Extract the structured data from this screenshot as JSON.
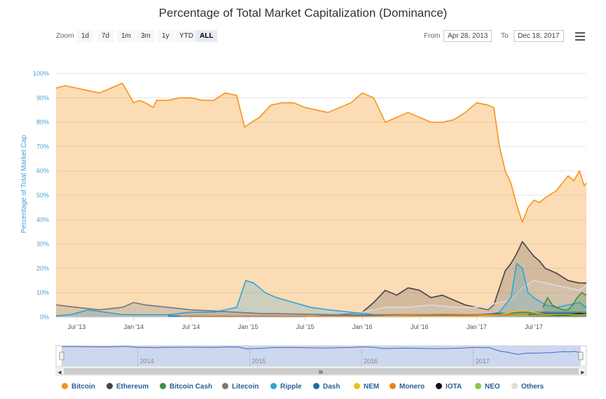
{
  "chart_data": {
    "type": "area",
    "title": "Percentage of Total Market Capitalization (Dominance)",
    "ylabel": "Percentage of Total Market Cap",
    "xlabel": "",
    "ylim": [
      0,
      100
    ],
    "y_ticks": [
      "0%",
      "10%",
      "20%",
      "30%",
      "40%",
      "50%",
      "60%",
      "70%",
      "80%",
      "90%",
      "100%"
    ],
    "x_range": [
      2013.32,
      2017.96
    ],
    "x_ticks": [
      {
        "label": "Jul '13",
        "x": 2013.5
      },
      {
        "label": "Jan '14",
        "x": 2014.0
      },
      {
        "label": "Jul '14",
        "x": 2014.5
      },
      {
        "label": "Jan '15",
        "x": 2015.0
      },
      {
        "label": "Jul '15",
        "x": 2015.5
      },
      {
        "label": "Jan '16",
        "x": 2016.0
      },
      {
        "label": "Jul '16",
        "x": 2016.5
      },
      {
        "label": "Jan '17",
        "x": 2017.0
      },
      {
        "label": "Jul '17",
        "x": 2017.5
      }
    ],
    "series": [
      {
        "name": "Bitcoin",
        "color": "#f7931a",
        "x": [
          2013.32,
          2013.4,
          2013.5,
          2013.6,
          2013.7,
          2013.8,
          2013.9,
          2014.0,
          2014.05,
          2014.1,
          2014.17,
          2014.2,
          2014.3,
          2014.4,
          2014.5,
          2014.6,
          2014.7,
          2014.8,
          2014.9,
          2014.97,
          2015.03,
          2015.1,
          2015.2,
          2015.3,
          2015.4,
          2015.5,
          2015.6,
          2015.7,
          2015.8,
          2015.9,
          2016.0,
          2016.1,
          2016.15,
          2016.2,
          2016.3,
          2016.4,
          2016.5,
          2016.6,
          2016.7,
          2016.8,
          2016.9,
          2017.0,
          2017.1,
          2017.15,
          2017.2,
          2017.25,
          2017.3,
          2017.35,
          2017.4,
          2017.45,
          2017.5,
          2017.55,
          2017.6,
          2017.7,
          2017.8,
          2017.85,
          2017.9,
          2017.94,
          2017.96
        ],
        "values": [
          94,
          95,
          94,
          93,
          92,
          94,
          96,
          88,
          89,
          88,
          86,
          89,
          89,
          90,
          90,
          89,
          89,
          92,
          91,
          78,
          80,
          82,
          87,
          88,
          88,
          86,
          85,
          84,
          86,
          88,
          92,
          90,
          85,
          80,
          82,
          84,
          82,
          80,
          80,
          81,
          84,
          88,
          87,
          86,
          70,
          60,
          55,
          46,
          39,
          45,
          48,
          47,
          49,
          52,
          58,
          56,
          60,
          54,
          55
        ]
      },
      {
        "name": "Ethereum",
        "color": "#434348",
        "x": [
          2015.6,
          2015.8,
          2016.0,
          2016.1,
          2016.2,
          2016.3,
          2016.4,
          2016.5,
          2016.6,
          2016.7,
          2016.8,
          2016.9,
          2017.0,
          2017.1,
          2017.15,
          2017.2,
          2017.25,
          2017.3,
          2017.35,
          2017.4,
          2017.45,
          2017.5,
          2017.55,
          2017.6,
          2017.7,
          2017.8,
          2017.9,
          2017.96
        ],
        "values": [
          0.5,
          1,
          2,
          6,
          11,
          9,
          12,
          11,
          8,
          9,
          7,
          5,
          4,
          3,
          5,
          12,
          19,
          22,
          26,
          31,
          28,
          25,
          23,
          20,
          18,
          15,
          14,
          14
        ]
      },
      {
        "name": "Others",
        "color": "#dcdcdc",
        "x": [
          2013.32,
          2013.5,
          2013.7,
          2013.9,
          2014.0,
          2014.1,
          2014.2,
          2014.3,
          2014.4,
          2014.5,
          2014.6,
          2014.7,
          2014.8,
          2014.9,
          2015.0,
          2015.2,
          2015.4,
          2015.6,
          2015.8,
          2016.0,
          2016.2,
          2016.4,
          2016.6,
          2016.8,
          2017.0,
          2017.1,
          2017.2,
          2017.3,
          2017.4,
          2017.5,
          2017.6,
          2017.7,
          2017.8,
          2017.9,
          2017.96
        ],
        "values": [
          1,
          2,
          3,
          4,
          3,
          5,
          4,
          3,
          3,
          2,
          3,
          3,
          4,
          4,
          3,
          2,
          1.5,
          1.5,
          1.5,
          2,
          4,
          4,
          5,
          4,
          4,
          5,
          6,
          7,
          12,
          15,
          14,
          13,
          12,
          11,
          13
        ]
      },
      {
        "name": "Ripple",
        "color": "#2aa5d8",
        "x": [
          2013.32,
          2013.45,
          2013.6,
          2013.75,
          2013.9,
          2014.1,
          2014.3,
          2014.5,
          2014.7,
          2014.9,
          2014.98,
          2015.05,
          2015.15,
          2015.25,
          2015.4,
          2015.55,
          2015.7,
          2015.9,
          2016.1,
          2016.3,
          2016.5,
          2016.7,
          2016.9,
          2017.1,
          2017.2,
          2017.3,
          2017.35,
          2017.4,
          2017.45,
          2017.5,
          2017.6,
          2017.7,
          2017.8,
          2017.9,
          2017.96
        ],
        "values": [
          0.5,
          1,
          3,
          2,
          1,
          1,
          1,
          2,
          2,
          4,
          15,
          14,
          10,
          8,
          6,
          4,
          3,
          2,
          1,
          1,
          1,
          1,
          1,
          1,
          2,
          8,
          22,
          20,
          10,
          8,
          5,
          4,
          5,
          6,
          4
        ]
      },
      {
        "name": "Litecoin",
        "color": "#777777",
        "x": [
          2013.32,
          2013.5,
          2013.7,
          2013.9,
          2014.0,
          2014.1,
          2014.3,
          2014.5,
          2014.7,
          2014.9,
          2015.1,
          2015.4,
          2015.7,
          2016.0,
          2016.4,
          2016.8,
          2017.0,
          2017.2,
          2017.4,
          2017.6,
          2017.8,
          2017.96
        ],
        "values": [
          5,
          4,
          3,
          4,
          6,
          5,
          4,
          3,
          2.5,
          2,
          1.5,
          1.3,
          1,
          0.8,
          1,
          0.8,
          0.8,
          1,
          2,
          2,
          2,
          2
        ]
      },
      {
        "name": "Bitcoin Cash",
        "color": "#3e8e3b",
        "x": [
          2017.58,
          2017.62,
          2017.66,
          2017.7,
          2017.75,
          2017.8,
          2017.84,
          2017.88,
          2017.92,
          2017.96
        ],
        "values": [
          4,
          8,
          5,
          4,
          3,
          3,
          5,
          8,
          10,
          9
        ]
      },
      {
        "name": "Dash",
        "color": "#1c6ea4",
        "x": [
          2014.3,
          2014.6,
          2015.0,
          2015.5,
          2016.0,
          2016.5,
          2017.0,
          2017.2,
          2017.4,
          2017.6,
          2017.8,
          2017.96
        ],
        "values": [
          0.5,
          0.3,
          0.3,
          0.3,
          0.5,
          0.8,
          1,
          1.5,
          2,
          1.5,
          1.5,
          1.5
        ]
      },
      {
        "name": "NEM",
        "color": "#f0c21a",
        "x": [
          2015.5,
          2016.0,
          2016.5,
          2017.0,
          2017.2,
          2017.3,
          2017.4,
          2017.5,
          2017.6,
          2017.8,
          2017.96
        ],
        "values": [
          0.2,
          0.3,
          0.3,
          0.3,
          1,
          2,
          3,
          2,
          1,
          1,
          1
        ]
      },
      {
        "name": "Monero",
        "color": "#f07f1a",
        "x": [
          2014.4,
          2015.0,
          2015.5,
          2016.0,
          2016.5,
          2016.7,
          2017.0,
          2017.5,
          2017.96
        ],
        "values": [
          0.5,
          0.5,
          0.5,
          0.3,
          1,
          1.2,
          1,
          1,
          1
        ]
      },
      {
        "name": "IOTA",
        "color": "#111111",
        "x": [
          2017.45,
          2017.55,
          2017.7,
          2017.8,
          2017.9,
          2017.96
        ],
        "values": [
          1,
          1,
          0.8,
          0.8,
          1.5,
          1
        ]
      },
      {
        "name": "NEO",
        "color": "#8cc63f",
        "x": [
          2017.3,
          2017.5,
          2017.7,
          2017.96
        ],
        "values": [
          0.5,
          0.8,
          1,
          1
        ]
      }
    ]
  },
  "toolbar": {
    "zoom_label": "Zoom",
    "zoom_buttons": [
      "1d",
      "7d",
      "1m",
      "3m",
      "1y",
      "YTD",
      "ALL"
    ],
    "active_zoom": "ALL",
    "from_label": "From",
    "from_value": "Apr 28, 2013",
    "to_label": "To",
    "to_value": "Dec 18, 2017"
  },
  "navigator": {
    "year_labels": [
      "2014",
      "2015",
      "2016",
      "2017"
    ],
    "year_positions": [
      2014.0,
      2015.0,
      2016.0,
      2017.0
    ],
    "handle_glyph": "III",
    "left_arrow": "◀",
    "right_arrow": "▶"
  },
  "colors": {
    "bitcoin_fill": "#fbd9b7",
    "axis_label": "#4a9fd9",
    "navigator_fill": "#c8d3ee",
    "navigator_line": "#4a69b5"
  }
}
